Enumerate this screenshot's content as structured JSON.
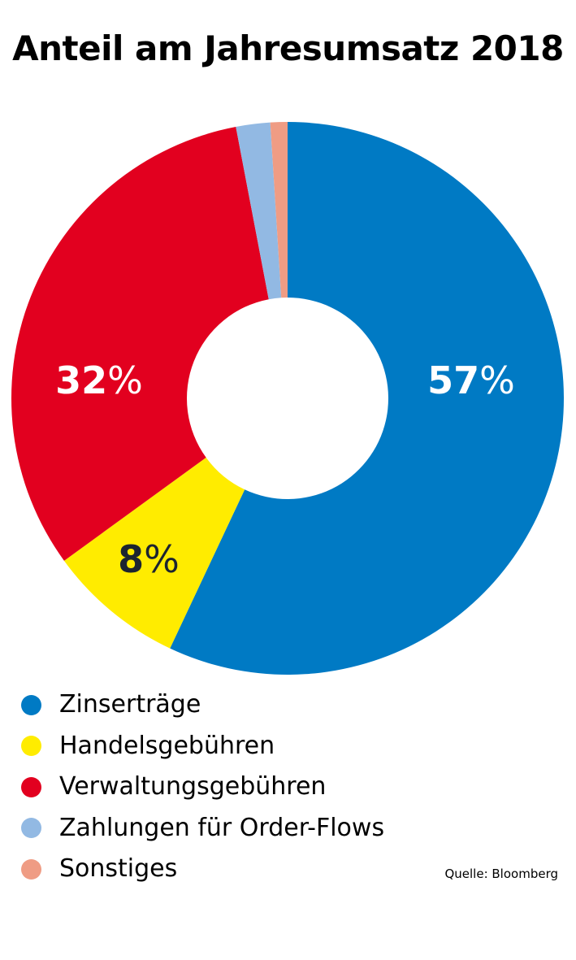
{
  "chart_data": {
    "type": "pie",
    "title": "Anteil am Jahresumsatz 2018",
    "donut": true,
    "start_angle": "top, clockwise",
    "slices": [
      {
        "label": "Zinserträge",
        "value": 57,
        "color": "#007ac4",
        "value_label": "57",
        "unit": "%",
        "label_color": "#ffffff"
      },
      {
        "label": "Handelsgebühren",
        "value": 8,
        "color": "#ffec00",
        "value_label": "8",
        "unit": "%",
        "label_color": "#1c2430"
      },
      {
        "label": "Verwaltungsgebühren",
        "value": 32,
        "color": "#e2001f",
        "value_label": "32",
        "unit": "%",
        "label_color": "#ffffff"
      },
      {
        "label": "Zahlungen für Order-Flows",
        "value": 2,
        "color": "#92b9e3",
        "value_label": "",
        "unit": "",
        "label_color": "#ffffff"
      },
      {
        "label": "Sonstiges",
        "value": 1,
        "color": "#ef9c84",
        "value_label": "",
        "unit": "",
        "label_color": "#ffffff"
      }
    ],
    "legend_placement": "bottom-left",
    "source": "Quelle: Bloomberg"
  }
}
